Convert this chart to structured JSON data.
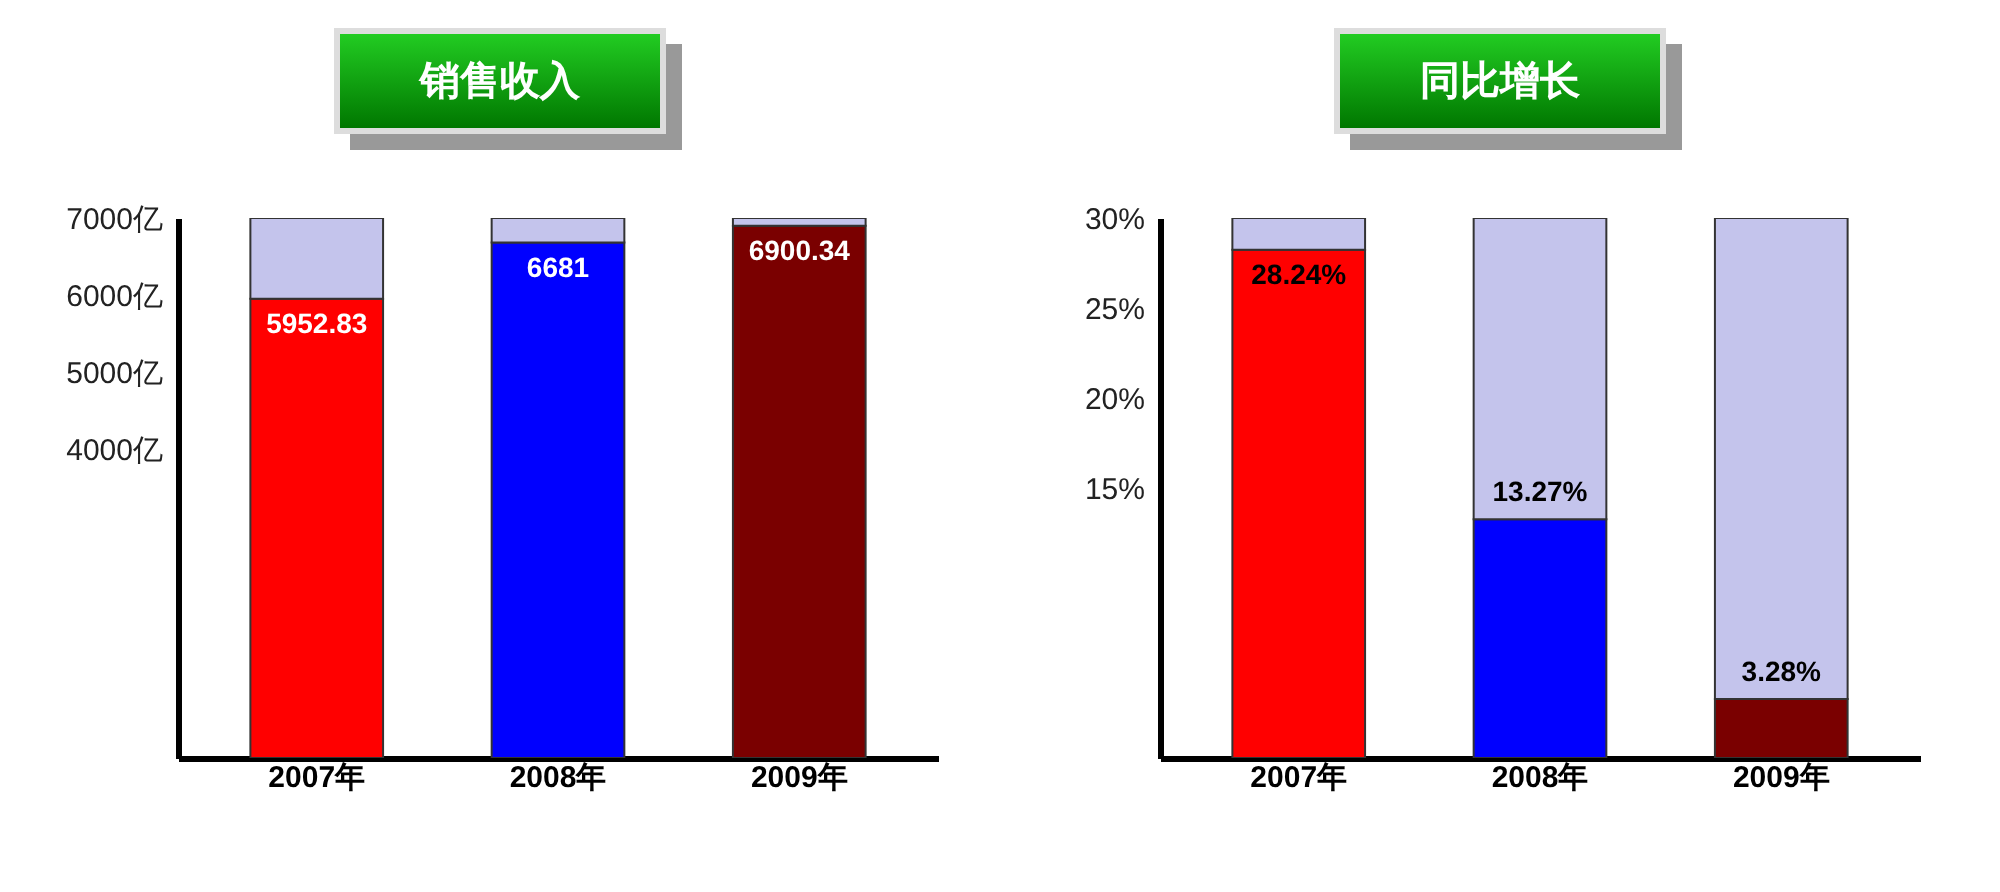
{
  "chart_data": [
    {
      "type": "bar",
      "title": "销售收入",
      "categories": [
        "2007年",
        "2008年",
        "2009年"
      ],
      "stacked": true,
      "series": [
        {
          "colors": [
            "#ff0000",
            "#0000ff",
            "#7a0000"
          ],
          "values": [
            5952.83,
            6681,
            6900.34
          ],
          "value_labels": [
            "5952.83",
            "6681",
            "6900.34"
          ]
        },
        {
          "color": "#c4c4ec",
          "values": [
            1047.17,
            319,
            99.66
          ]
        }
      ],
      "ylim": [
        0,
        7000
      ],
      "yticks": [
        {
          "value": 4000,
          "label": "4000亿"
        },
        {
          "value": 5000,
          "label": "5000亿"
        },
        {
          "value": 6000,
          "label": "6000亿"
        },
        {
          "value": 7000,
          "label": "7000亿"
        }
      ],
      "grid": false
    },
    {
      "type": "bar",
      "title": "同比增长",
      "categories": [
        "2007年",
        "2008年",
        "2009年"
      ],
      "stacked": true,
      "series": [
        {
          "colors": [
            "#ff0000",
            "#0000ff",
            "#7a0000"
          ],
          "values": [
            28.24,
            13.27,
            3.28
          ],
          "value_labels": [
            "28.24%",
            "13.27%",
            "3.28%"
          ]
        },
        {
          "color": "#c4c4ec",
          "values": [
            1.76,
            16.73,
            26.72
          ]
        }
      ],
      "ylim": [
        0,
        30
      ],
      "yticks": [
        {
          "value": 15,
          "label": "15%"
        },
        {
          "value": 20,
          "label": "20%"
        },
        {
          "value": 25,
          "label": "25%"
        },
        {
          "value": 30,
          "label": "30%"
        }
      ],
      "grid": false
    }
  ]
}
